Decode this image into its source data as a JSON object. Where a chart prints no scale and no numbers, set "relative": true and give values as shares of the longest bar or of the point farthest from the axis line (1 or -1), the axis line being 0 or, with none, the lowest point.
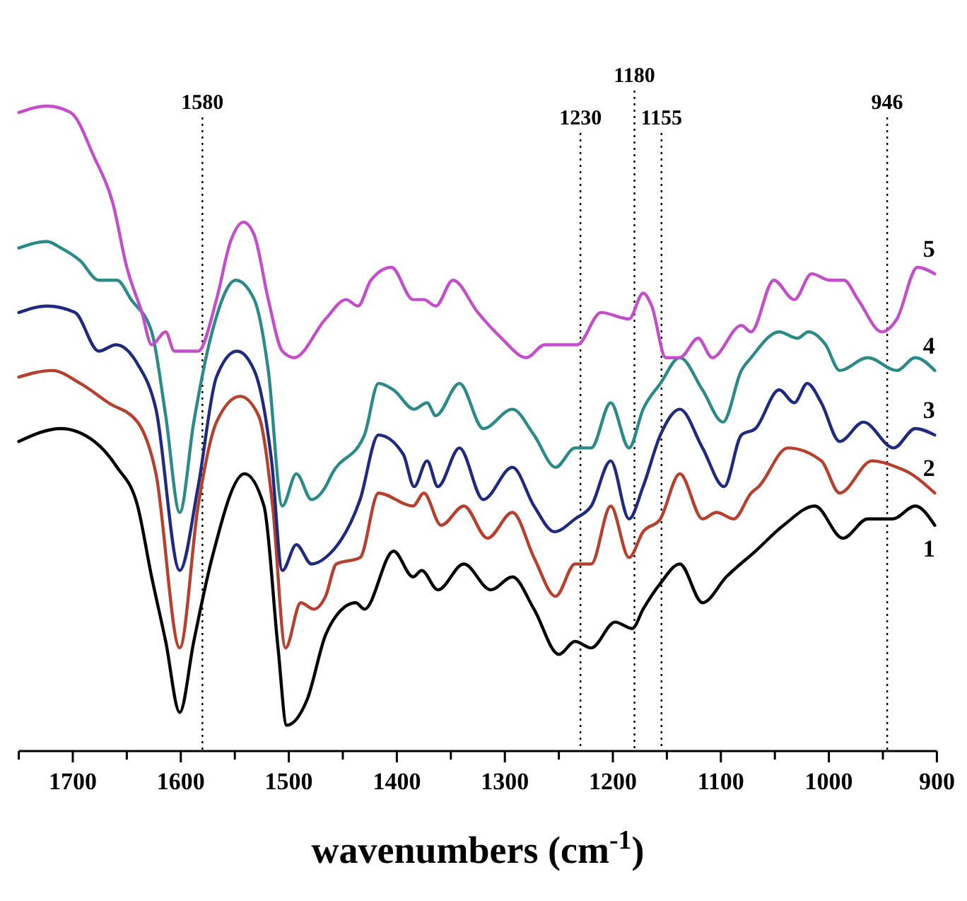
{
  "chart_data": {
    "type": "line",
    "relative": true,
    "xlabel": "wavenumbers (cm$^{-1}$)",
    "xlim": [
      1750,
      900
    ],
    "xticks": [
      {
        "value": 1750,
        "label": null
      },
      1700,
      {
        "value": 1650,
        "label": null
      },
      1600,
      {
        "value": 1550,
        "label": null
      },
      1500,
      {
        "value": 1450,
        "label": null
      },
      1400,
      {
        "value": 1350,
        "label": null
      },
      1300,
      {
        "value": 1250,
        "label": null
      },
      1200,
      {
        "value": 1150,
        "label": null
      },
      1100,
      {
        "value": 1050,
        "label": null
      },
      1000,
      {
        "value": 950,
        "label": null
      },
      900
    ],
    "tick_labels": "x",
    "grid": false,
    "legend": false,
    "marker": "none",
    "line_style": "solid",
    "ref_lines": [
      {
        "axis": "x",
        "value": 1580,
        "label": "1580",
        "line_style": "dotted",
        "color": "#000000"
      },
      {
        "axis": "x",
        "value": 1230,
        "label": "1230",
        "line_style": "dotted",
        "color": "#000000"
      },
      {
        "axis": "x",
        "value": 1180,
        "label": "1180",
        "line_style": "dotted",
        "color": "#000000"
      },
      {
        "axis": "x",
        "value": 1155,
        "label": "1155",
        "line_style": "dotted",
        "color": "#000000"
      },
      {
        "axis": "x",
        "value": 946,
        "label": "946",
        "line_style": "dotted",
        "color": "#000000"
      }
    ],
    "series": [
      {
        "name": "1",
        "color": "#000000",
        "x": [
          1750,
          1711,
          1680,
          1659,
          1640,
          1627,
          1614,
          1601,
          1588,
          1571,
          1541,
          1523,
          1510,
          1502,
          1483,
          1466,
          1456,
          1438,
          1430,
          1403,
          1385,
          1377,
          1362,
          1338,
          1313,
          1293,
          1273,
          1250,
          1235,
          1220,
          1198,
          1182,
          1172,
          1156,
          1138,
          1117,
          1095,
          1068,
          1042,
          1013,
          987,
          964,
          941,
          920,
          902
        ],
        "values": [
          0.48,
          0.5,
          0.48,
          0.44,
          0.38,
          0.27,
          0.17,
          0.06,
          0.17,
          0.3,
          0.43,
          0.38,
          0.16,
          0.04,
          0.08,
          0.18,
          0.21,
          0.23,
          0.22,
          0.31,
          0.27,
          0.28,
          0.25,
          0.29,
          0.25,
          0.27,
          0.22,
          0.15,
          0.17,
          0.16,
          0.2,
          0.19,
          0.22,
          0.26,
          0.29,
          0.23,
          0.27,
          0.31,
          0.35,
          0.38,
          0.33,
          0.36,
          0.36,
          0.38,
          0.35
        ]
      },
      {
        "name": "2",
        "color": "#b5402e",
        "x": [
          1750,
          1719,
          1693,
          1667,
          1640,
          1623,
          1601,
          1584,
          1567,
          1545,
          1528,
          1515,
          1503,
          1489,
          1477,
          1466,
          1456,
          1434,
          1417,
          1385,
          1375,
          1359,
          1338,
          1316,
          1293,
          1273,
          1253,
          1235,
          1220,
          1202,
          1185,
          1172,
          1156,
          1138,
          1117,
          1104,
          1088,
          1072,
          1065,
          1038,
          1007,
          990,
          960,
          937,
          924,
          902
        ],
        "values": [
          0.58,
          0.59,
          0.57,
          0.54,
          0.51,
          0.43,
          0.16,
          0.38,
          0.51,
          0.55,
          0.52,
          0.38,
          0.16,
          0.23,
          0.22,
          0.24,
          0.29,
          0.3,
          0.4,
          0.38,
          0.4,
          0.35,
          0.38,
          0.33,
          0.37,
          0.3,
          0.24,
          0.29,
          0.29,
          0.38,
          0.3,
          0.34,
          0.36,
          0.43,
          0.36,
          0.37,
          0.36,
          0.4,
          0.41,
          0.47,
          0.45,
          0.4,
          0.45,
          0.44,
          0.43,
          0.4
        ]
      },
      {
        "name": "3",
        "color": "#1f2a7e",
        "x": [
          1750,
          1724,
          1698,
          1676,
          1660,
          1640,
          1623,
          1601,
          1584,
          1567,
          1548,
          1532,
          1516,
          1506,
          1493,
          1479,
          1466,
          1434,
          1417,
          1394,
          1384,
          1372,
          1362,
          1342,
          1320,
          1293,
          1273,
          1254,
          1235,
          1220,
          1202,
          1185,
          1172,
          1156,
          1138,
          1117,
          1097,
          1081,
          1068,
          1046,
          1032,
          1020,
          1007,
          990,
          968,
          940,
          920,
          902
        ],
        "values": [
          0.68,
          0.69,
          0.68,
          0.62,
          0.63,
          0.6,
          0.53,
          0.28,
          0.41,
          0.58,
          0.62,
          0.59,
          0.45,
          0.28,
          0.32,
          0.29,
          0.3,
          0.39,
          0.49,
          0.46,
          0.41,
          0.45,
          0.41,
          0.47,
          0.39,
          0.44,
          0.38,
          0.34,
          0.36,
          0.38,
          0.45,
          0.36,
          0.41,
          0.49,
          0.53,
          0.47,
          0.41,
          0.49,
          0.5,
          0.56,
          0.54,
          0.57,
          0.54,
          0.48,
          0.51,
          0.47,
          0.5,
          0.49
        ]
      },
      {
        "name": "4",
        "color": "#2b8a87",
        "x": [
          1750,
          1724,
          1711,
          1693,
          1676,
          1659,
          1646,
          1627,
          1614,
          1601,
          1588,
          1571,
          1549,
          1532,
          1519,
          1506,
          1493,
          1479,
          1466,
          1460,
          1430,
          1417,
          1403,
          1384,
          1372,
          1364,
          1342,
          1320,
          1293,
          1273,
          1253,
          1235,
          1220,
          1202,
          1185,
          1172,
          1156,
          1138,
          1117,
          1098,
          1081,
          1072,
          1046,
          1029,
          1019,
          1003,
          990,
          964,
          937,
          920,
          902
        ],
        "values": [
          0.78,
          0.79,
          0.78,
          0.76,
          0.73,
          0.73,
          0.7,
          0.65,
          0.52,
          0.37,
          0.51,
          0.65,
          0.73,
          0.7,
          0.59,
          0.38,
          0.43,
          0.39,
          0.41,
          0.43,
          0.49,
          0.57,
          0.56,
          0.53,
          0.54,
          0.52,
          0.57,
          0.5,
          0.53,
          0.49,
          0.44,
          0.47,
          0.47,
          0.54,
          0.47,
          0.53,
          0.57,
          0.61,
          0.56,
          0.51,
          0.59,
          0.61,
          0.65,
          0.64,
          0.65,
          0.63,
          0.59,
          0.61,
          0.59,
          0.61,
          0.59
        ]
      },
      {
        "name": "5",
        "color": "#c24fc9",
        "x": [
          1750,
          1724,
          1702,
          1680,
          1663,
          1650,
          1636,
          1627,
          1614,
          1606,
          1584,
          1567,
          1554,
          1542,
          1532,
          1519,
          1506,
          1495,
          1466,
          1447,
          1436,
          1424,
          1405,
          1385,
          1375,
          1364,
          1348,
          1325,
          1303,
          1280,
          1263,
          1244,
          1233,
          1211,
          1185,
          1172,
          1164,
          1151,
          1138,
          1121,
          1108,
          1081,
          1072,
          1051,
          1032,
          1016,
          999,
          986,
          973,
          951,
          937,
          918,
          902
        ],
        "values": [
          0.99,
          1,
          0.99,
          0.92,
          0.85,
          0.75,
          0.68,
          0.63,
          0.65,
          0.62,
          0.62,
          0.7,
          0.79,
          0.82,
          0.8,
          0.7,
          0.62,
          0.61,
          0.67,
          0.7,
          0.69,
          0.73,
          0.75,
          0.7,
          0.7,
          0.69,
          0.73,
          0.68,
          0.64,
          0.61,
          0.63,
          0.63,
          0.63,
          0.68,
          0.67,
          0.71,
          0.69,
          0.61,
          0.61,
          0.64,
          0.61,
          0.66,
          0.65,
          0.73,
          0.7,
          0.74,
          0.73,
          0.73,
          0.7,
          0.65,
          0.67,
          0.75,
          0.74
        ]
      }
    ]
  }
}
